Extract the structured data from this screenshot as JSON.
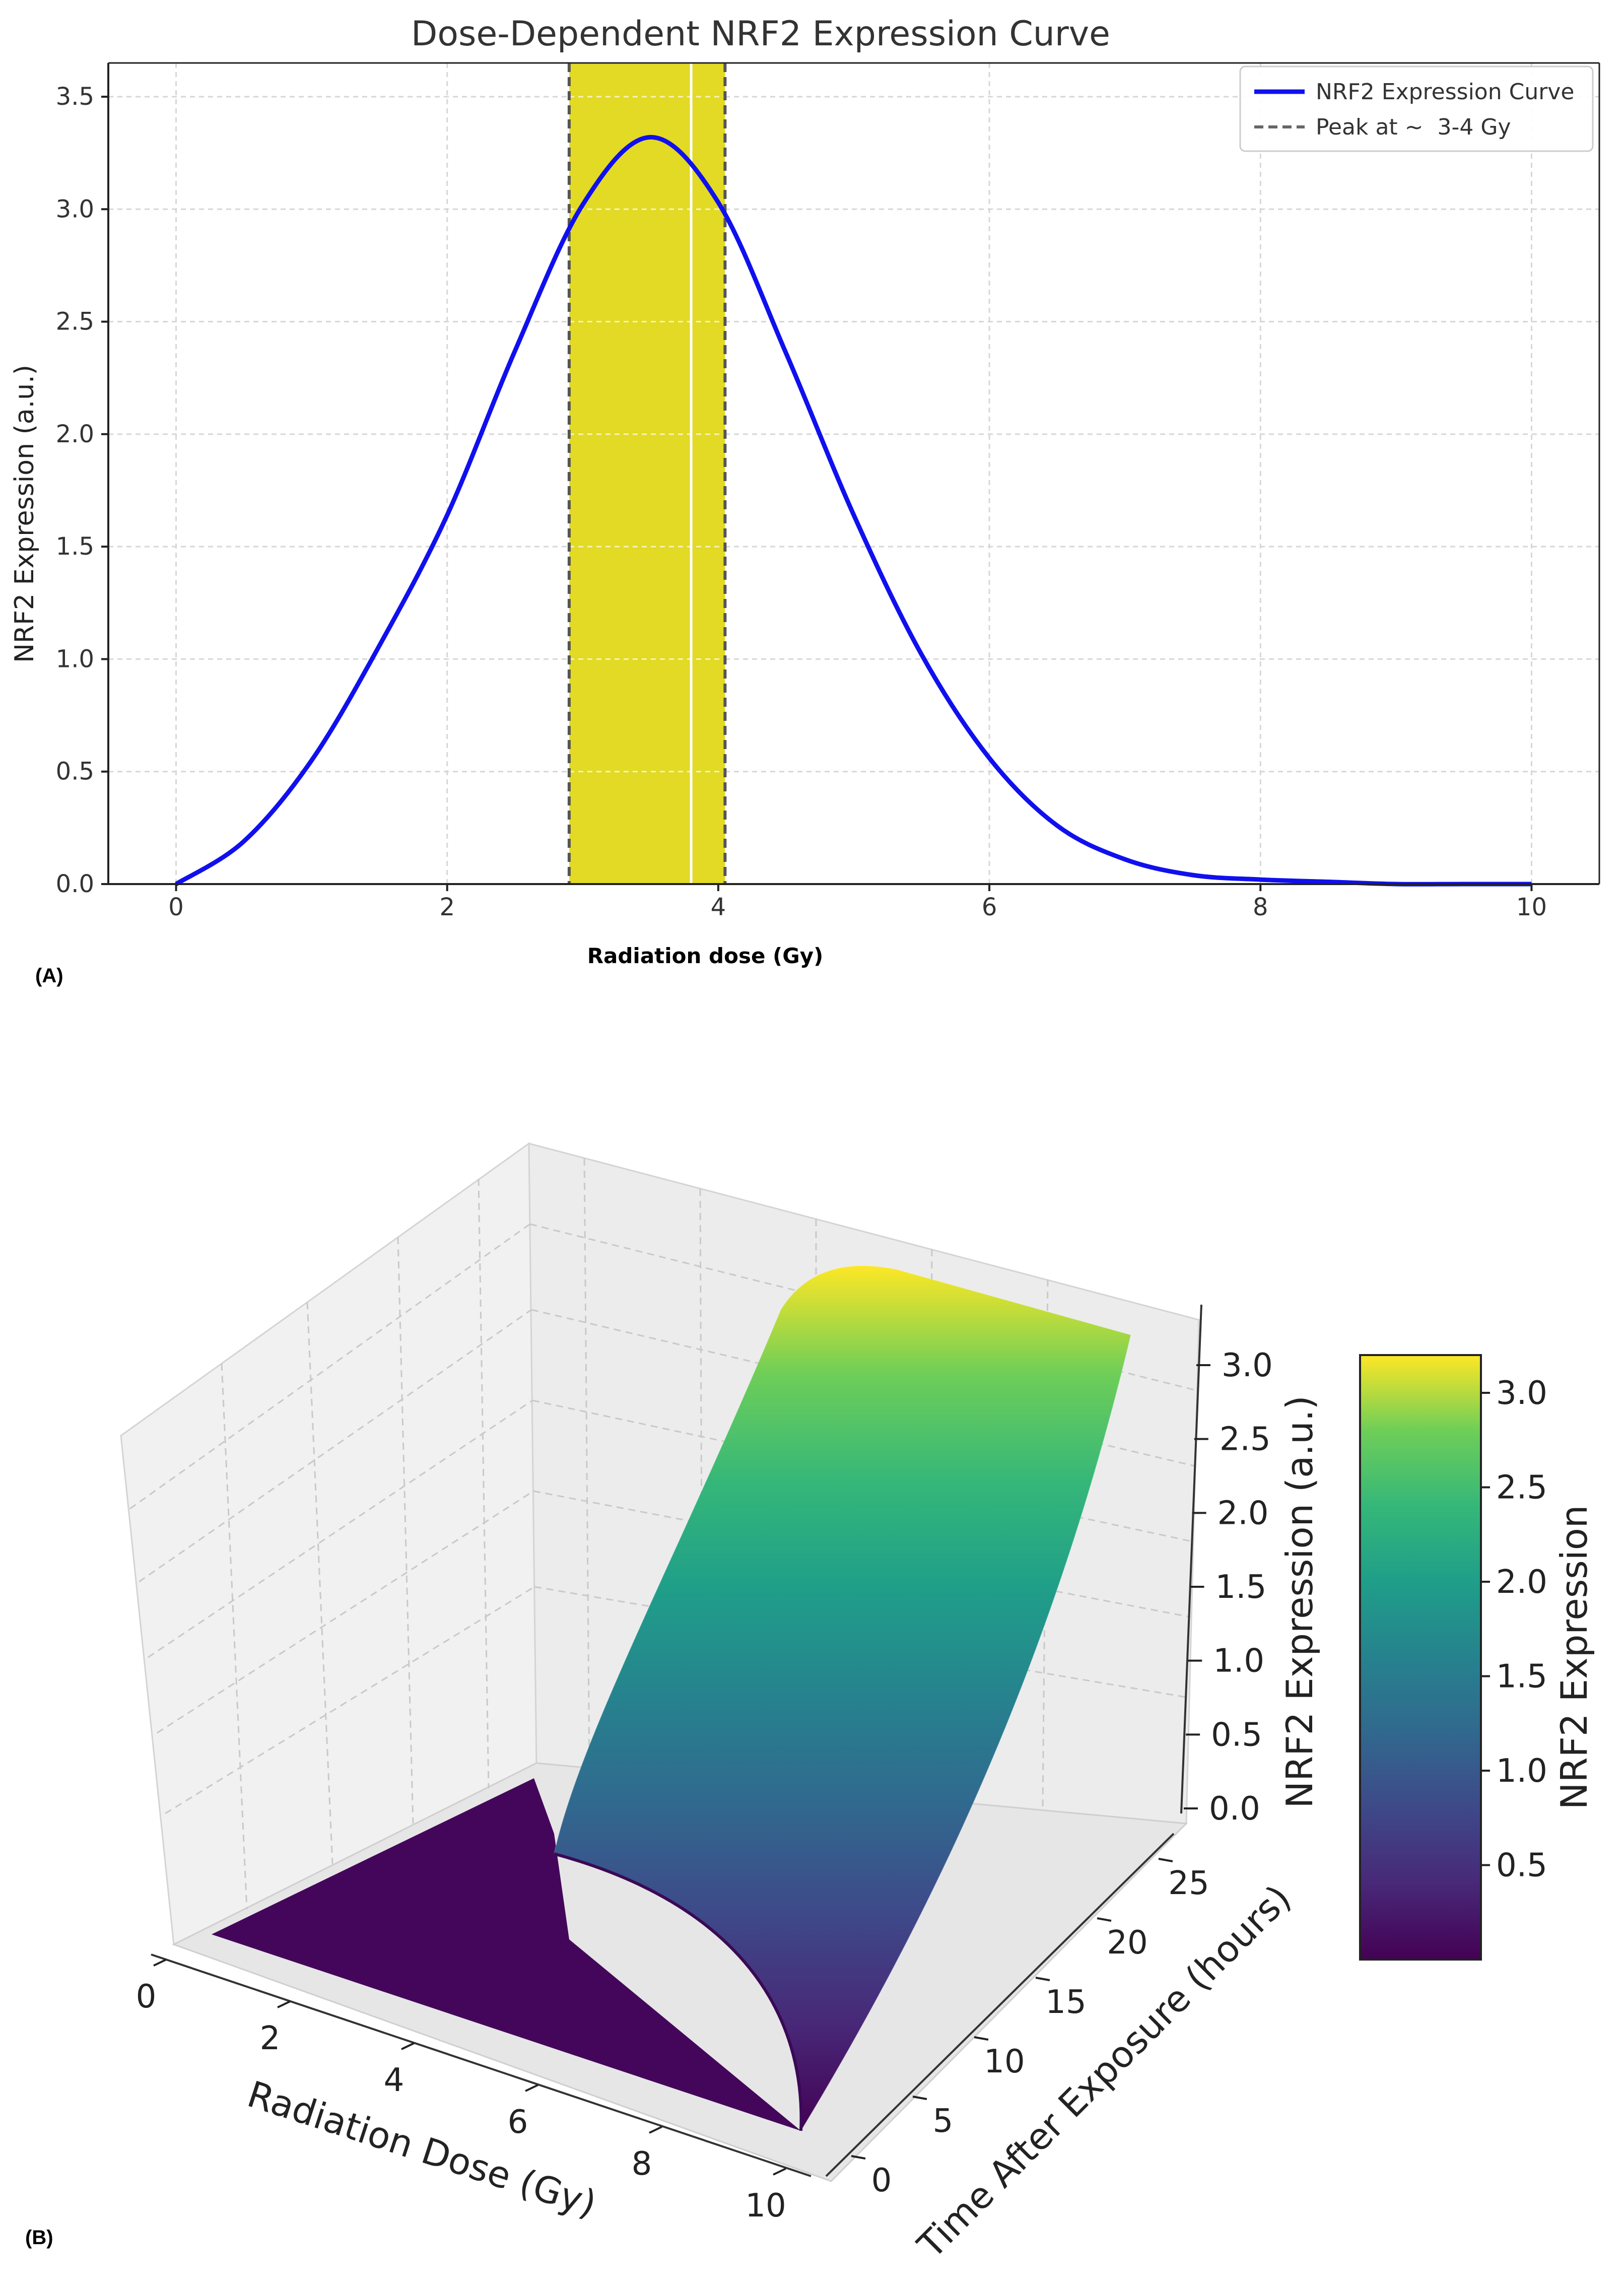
{
  "chart_data": [
    {
      "panel": "(A)",
      "type": "line",
      "title": "Dose-Dependent NRF2 Expression Curve",
      "xlabel": "Radiation dose (Gy)",
      "ylabel": "NRF2 Expression (a.u.)",
      "xlim": [
        -0.5,
        10.5
      ],
      "ylim": [
        0,
        3.65
      ],
      "xticks": [
        0,
        2,
        4,
        6,
        8,
        10
      ],
      "yticks": [
        0.0,
        0.5,
        1.0,
        1.5,
        2.0,
        2.5,
        3.0,
        3.5
      ],
      "ytick_labels": [
        "0.0",
        "0.5",
        "1.0",
        "1.5",
        "2.0",
        "2.5",
        "3.0",
        "3.5"
      ],
      "grid": true,
      "series": [
        {
          "name": "NRF2 Expression Curve",
          "color": "#1010ee",
          "x": [
            0,
            0.5,
            1,
            1.5,
            2,
            2.5,
            3,
            3.5,
            4,
            4.5,
            5,
            5.5,
            6,
            6.5,
            7,
            7.5,
            8,
            8.5,
            9,
            9.5,
            10
          ],
          "y": [
            0.0,
            0.19,
            0.55,
            1.06,
            1.64,
            2.37,
            3.02,
            3.32,
            3.03,
            2.36,
            1.64,
            1.02,
            0.56,
            0.26,
            0.11,
            0.04,
            0.02,
            0.01,
            0.0,
            0.0,
            0.0
          ]
        }
      ],
      "highlight_band": {
        "x_range": [
          2.9,
          4.05
        ],
        "color": "#e2da24"
      },
      "vlines": [
        {
          "x": 2.9,
          "style": "dashed",
          "color": "#555555"
        },
        {
          "x": 4.05,
          "style": "dashed",
          "color": "#555555"
        },
        {
          "x": 3.8,
          "style": "solid",
          "color": "#ffffff"
        }
      ],
      "legend": {
        "position": "top-right",
        "entries": [
          {
            "label": "NRF2 Expression Curve",
            "style": "solid",
            "color": "#1010ee"
          },
          {
            "label": "Peak at ~  3-4 Gy",
            "style": "dashed",
            "color": "#666666"
          }
        ]
      }
    },
    {
      "panel": "(B)",
      "type": "surface",
      "xlabel": "Radiation Dose (Gy)",
      "ylabel": "Time After Exposure (hours)",
      "zlabel": "NRF2 Expression (a.u.)",
      "xticks": [
        0,
        2,
        4,
        6,
        8,
        10
      ],
      "yticks": [
        0,
        5,
        10,
        15,
        20,
        25
      ],
      "zticks": [
        0.0,
        0.5,
        1.0,
        1.5,
        2.0,
        2.5,
        3.0
      ],
      "ztick_labels": [
        "0.0",
        "0.5",
        "1.0",
        "1.5",
        "2.0",
        "2.5",
        "3.0"
      ],
      "xlim": [
        0,
        10
      ],
      "ylim": [
        0,
        24
      ],
      "zlim": [
        0,
        3.2
      ],
      "colormap": "viridis",
      "colorbar": {
        "label": "NRF2 Expression",
        "range": [
          0.0,
          3.2
        ],
        "ticks": [
          0.5,
          1.0,
          1.5,
          2.0,
          2.5,
          3.0
        ],
        "tick_labels": [
          "0.5",
          "1.0",
          "1.5",
          "2.0",
          "2.5",
          "3.0"
        ]
      },
      "surface_summary": {
        "dose_peak_gy": 4,
        "max_value": 3.2,
        "max_at_time_hours": 24,
        "value_at_time_zero": 0.0
      }
    }
  ]
}
